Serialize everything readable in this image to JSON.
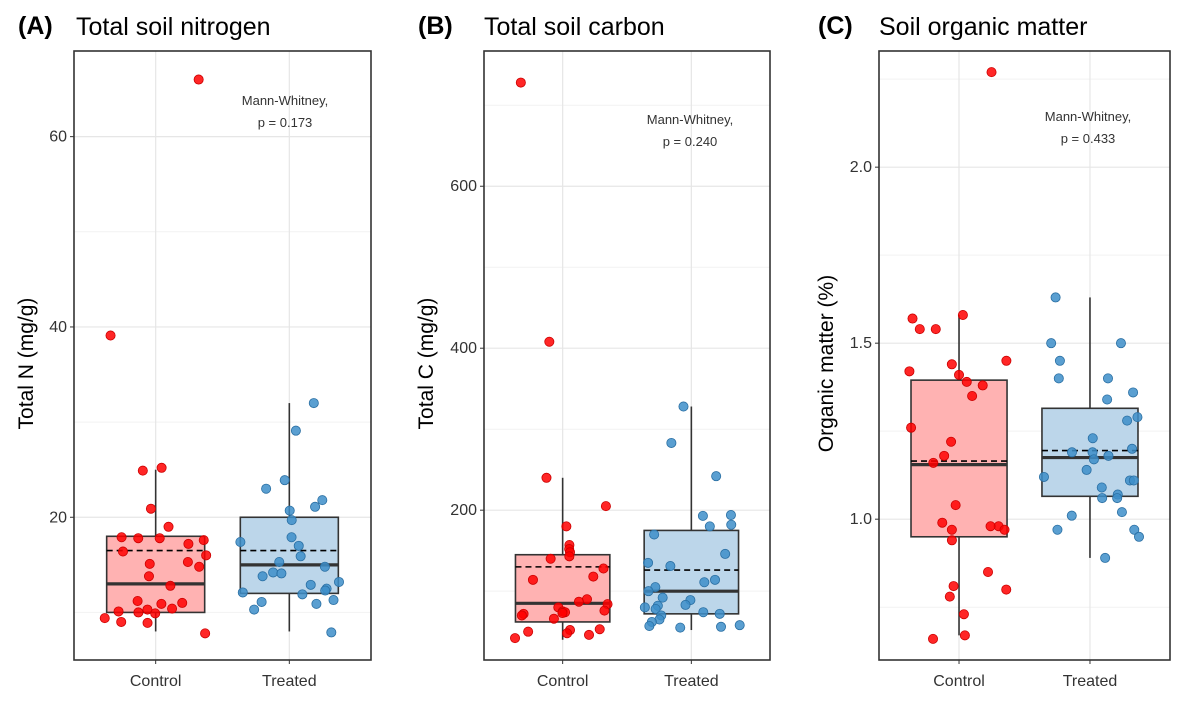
{
  "colors": {
    "control_fill": "#ffb2b2",
    "control_point": "#ff0000",
    "treated_fill": "#bcd6ea",
    "treated_point": "#3d8ec9",
    "box_stroke": "#333333",
    "grid_major": "#e6e6e6",
    "grid_minor": "#f2f2f2"
  },
  "chart_data": [
    {
      "tag": "(A)",
      "title": "Total soil nitrogen",
      "type": "box",
      "ylabel": "Total N (mg/g)",
      "ylim": [
        5,
        69
      ],
      "yticks": [
        20,
        40,
        60
      ],
      "ytick_labels": [
        "20",
        "40",
        "60"
      ],
      "categories": [
        "Control",
        "Treated"
      ],
      "annotation": [
        "Mann-Whitney,",
        "p = 0.173"
      ],
      "boxes": [
        {
          "group": "Control",
          "q1": 10,
          "median": 13,
          "q3": 18,
          "mean": 16.5,
          "whisker_low": 8,
          "whisker_high": 25
        },
        {
          "group": "Treated",
          "q1": 12,
          "median": 15,
          "q3": 20,
          "mean": 16.5,
          "whisker_low": 8,
          "whisker_high": 32
        }
      ],
      "points": {
        "Control": [
          66,
          39.1,
          25.2,
          24.9,
          20.9,
          19.0,
          17.9,
          17.8,
          17.8,
          17.6,
          17.2,
          16.4,
          16.0,
          15.3,
          15.1,
          14.8,
          13.8,
          12.8,
          11.2,
          11.0,
          10.9,
          10.4,
          10.3,
          10.1,
          10.0,
          9.9,
          9.4,
          9.0,
          8.9,
          7.8
        ],
        "Treated": [
          32.0,
          29.1,
          23.9,
          23.0,
          21.8,
          21.1,
          20.7,
          19.7,
          17.9,
          17.4,
          17.0,
          15.9,
          15.3,
          14.8,
          14.2,
          14.1,
          13.8,
          13.2,
          12.9,
          12.5,
          12.3,
          12.1,
          11.9,
          11.3,
          11.1,
          10.9,
          10.3,
          7.9
        ]
      }
    },
    {
      "tag": "(B)",
      "title": "Total soil carbon",
      "type": "box",
      "ylabel": "Total C (mg/g)",
      "ylim": [
        15,
        767
      ],
      "yticks": [
        200,
        400,
        600
      ],
      "ytick_labels": [
        "200",
        "400",
        "600"
      ],
      "categories": [
        "Control",
        "Treated"
      ],
      "annotation": [
        "Mann-Whitney,",
        "p = 0.240"
      ],
      "boxes": [
        {
          "group": "Control",
          "q1": 62,
          "median": 85,
          "q3": 145,
          "mean": 130,
          "whisker_low": 40,
          "whisker_high": 240
        },
        {
          "group": "Treated",
          "q1": 72,
          "median": 100,
          "q3": 175,
          "mean": 126,
          "whisker_low": 52,
          "whisker_high": 328
        }
      ],
      "points": {
        "Control": [
          728,
          408,
          240,
          205,
          180,
          157,
          152,
          148,
          143,
          140,
          128,
          118,
          114,
          90,
          87,
          84,
          80,
          76,
          75,
          74,
          73,
          72,
          70,
          66,
          53,
          52,
          50,
          48,
          46,
          42
        ],
        "Treated": [
          328,
          283,
          194,
          193,
          182,
          180,
          170,
          146,
          135,
          131,
          114,
          111,
          105,
          100,
          92,
          89,
          83,
          82,
          80,
          78,
          74,
          72,
          70,
          65,
          62,
          58,
          57,
          56,
          55,
          242
        ]
      }
    },
    {
      "tag": "(C)",
      "title": "Soil organic matter",
      "type": "box",
      "ylabel": "Organic matter (%)",
      "ylim": [
        0.6,
        2.33
      ],
      "yticks": [
        1.0,
        1.5,
        2.0
      ],
      "ytick_labels": [
        "1.0",
        "1.5",
        "2.0"
      ],
      "categories": [
        "Control",
        "Treated"
      ],
      "annotation": [
        "Mann-Whitney,",
        "p = 0.433"
      ],
      "boxes": [
        {
          "group": "Control",
          "q1": 0.95,
          "median": 1.155,
          "q3": 1.395,
          "mean": 1.165,
          "whisker_low": 0.67,
          "whisker_high": 1.58
        },
        {
          "group": "Treated",
          "q1": 1.065,
          "median": 1.175,
          "q3": 1.315,
          "mean": 1.195,
          "whisker_low": 0.89,
          "whisker_high": 1.63
        }
      ],
      "points": {
        "Control": [
          2.27,
          1.58,
          1.57,
          1.54,
          1.54,
          1.45,
          1.44,
          1.42,
          1.41,
          1.39,
          1.38,
          1.35,
          1.26,
          1.22,
          1.18,
          1.16,
          1.04,
          0.99,
          0.98,
          0.98,
          0.97,
          0.97,
          0.94,
          0.85,
          0.81,
          0.8,
          0.78,
          0.73,
          0.67,
          0.66
        ],
        "Treated": [
          1.63,
          1.5,
          1.5,
          1.45,
          1.4,
          1.4,
          1.36,
          1.34,
          1.29,
          1.28,
          1.23,
          1.2,
          1.19,
          1.19,
          1.18,
          1.17,
          1.14,
          1.12,
          1.11,
          1.11,
          1.09,
          1.07,
          1.06,
          1.06,
          1.02,
          1.01,
          0.97,
          0.97,
          0.95,
          0.89
        ]
      }
    }
  ]
}
